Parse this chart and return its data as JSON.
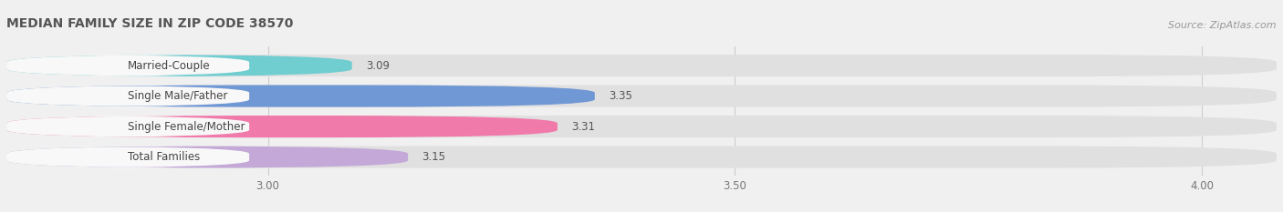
{
  "title": "MEDIAN FAMILY SIZE IN ZIP CODE 38570",
  "source": "Source: ZipAtlas.com",
  "categories": [
    "Married-Couple",
    "Single Male/Father",
    "Single Female/Mother",
    "Total Families"
  ],
  "values": [
    3.09,
    3.35,
    3.31,
    3.15
  ],
  "bar_colors": [
    "#70cdd0",
    "#7098d4",
    "#f07aaa",
    "#c3a8d8"
  ],
  "background_color": "#f0f0f0",
  "bar_bg_color": "#e0e0e0",
  "label_bg_color": "#f8f8f8",
  "xlim_min": 2.72,
  "xlim_max": 4.08,
  "x_axis_min": 2.72,
  "xticks": [
    3.0,
    3.5,
    4.0
  ],
  "label_fontsize": 8.5,
  "value_fontsize": 8.5,
  "title_fontsize": 10,
  "source_fontsize": 8
}
